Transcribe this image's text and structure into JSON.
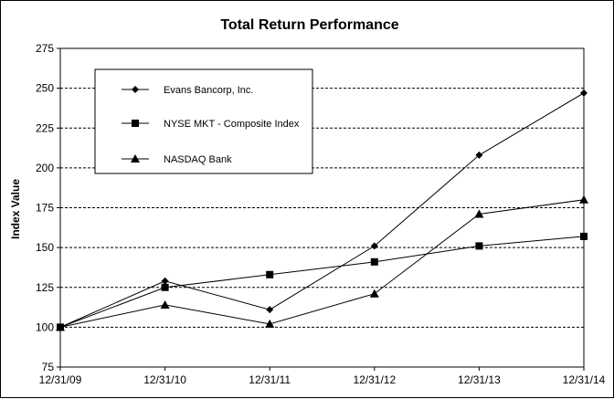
{
  "chart_data": {
    "type": "line",
    "title": "Total Return Performance",
    "xlabel": "",
    "ylabel": "Index Value",
    "ylim": [
      75,
      275
    ],
    "yticks": [
      75,
      100,
      125,
      150,
      175,
      200,
      225,
      250,
      275
    ],
    "grid": true,
    "legend_position": "top-left",
    "categories": [
      "12/31/09",
      "12/31/10",
      "12/31/11",
      "12/31/12",
      "12/31/13",
      "12/31/14"
    ],
    "series": [
      {
        "name": "Evans Bancorp, Inc.",
        "marker": "diamond",
        "values": [
          100,
          129,
          111,
          151,
          208,
          247
        ]
      },
      {
        "name": "NYSE MKT - Composite Index",
        "marker": "square",
        "values": [
          100,
          125,
          133,
          141,
          151,
          157
        ]
      },
      {
        "name": "NASDAQ Bank",
        "marker": "triangle",
        "values": [
          100,
          114,
          102,
          121,
          171,
          180
        ]
      }
    ]
  }
}
